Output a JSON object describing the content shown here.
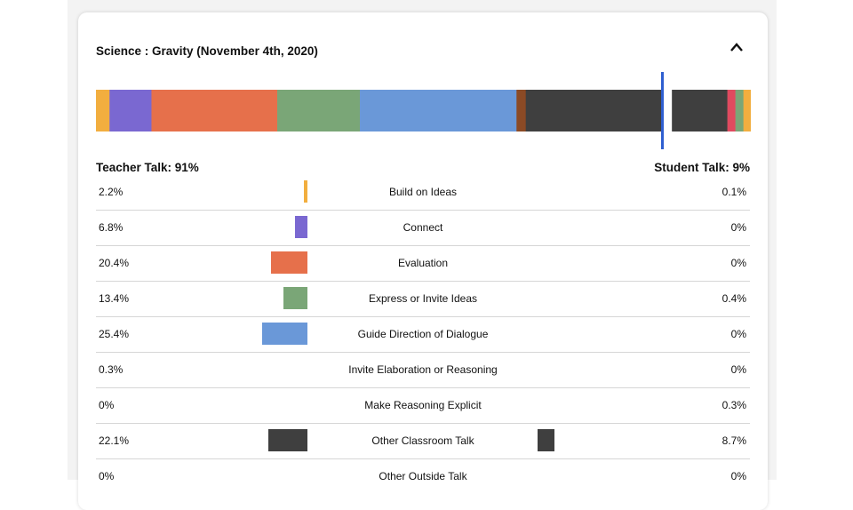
{
  "title": "Science : Gravity (November 4th, 2020)",
  "teacher_label": "Teacher Talk: 91%",
  "student_label": "Student Talk: 9%",
  "chart_data": {
    "type": "bar",
    "title": "Science : Gravity (November 4th, 2020)",
    "categories": [
      "Build on Ideas",
      "Connect",
      "Evaluation",
      "Express or Invite Ideas",
      "Guide Direction of Dialogue",
      "Invite Elaboration or Reasoning",
      "Make Reasoning Explicit",
      "Other Classroom Talk",
      "Other Outside Talk"
    ],
    "colors": [
      "#f2ae3f",
      "#7a68d1",
      "#e6704b",
      "#7aa677",
      "#6a98d8",
      "#8b4a25",
      "#3a3a3a",
      "#3f3f3f",
      "#e04a5f"
    ],
    "series": [
      {
        "name": "Teacher Talk",
        "values": [
          2.2,
          6.8,
          20.4,
          13.4,
          25.4,
          0.3,
          0,
          22.1,
          0
        ]
      },
      {
        "name": "Student Talk",
        "values": [
          0.1,
          0,
          0,
          0.4,
          0,
          0,
          0.3,
          8.7,
          0
        ]
      }
    ],
    "value_labels": {
      "teacher": [
        "2.2%",
        "6.8%",
        "20.4%",
        "13.4%",
        "25.4%",
        "0.3%",
        "0%",
        "22.1%",
        "0%"
      ],
      "student": [
        "0.1%",
        "0%",
        "0%",
        "0.4%",
        "0%",
        "0%",
        "0.3%",
        "8.7%",
        "0%"
      ]
    },
    "stacked_segments": [
      {
        "color": "#f2ae3f",
        "value": 2.2
      },
      {
        "color": "#7a68d1",
        "value": 6.8
      },
      {
        "color": "#e6704b",
        "value": 20.4
      },
      {
        "color": "#7aa677",
        "value": 13.4
      },
      {
        "color": "#6a98d8",
        "value": 25.4
      },
      {
        "color": "#8b4a25",
        "value": 1.5
      },
      {
        "color": "#3f3f3f",
        "value": 22.1
      },
      {
        "color": "#ffffff",
        "value": 1.6
      },
      {
        "color": "#3f3f3f",
        "value": 9.0
      },
      {
        "color": "#e04a5f",
        "value": 1.3
      },
      {
        "color": "#7aa677",
        "value": 1.3
      },
      {
        "color": "#f2ae3f",
        "value": 1.2
      }
    ],
    "teacher_share": 91,
    "student_share": 9
  }
}
